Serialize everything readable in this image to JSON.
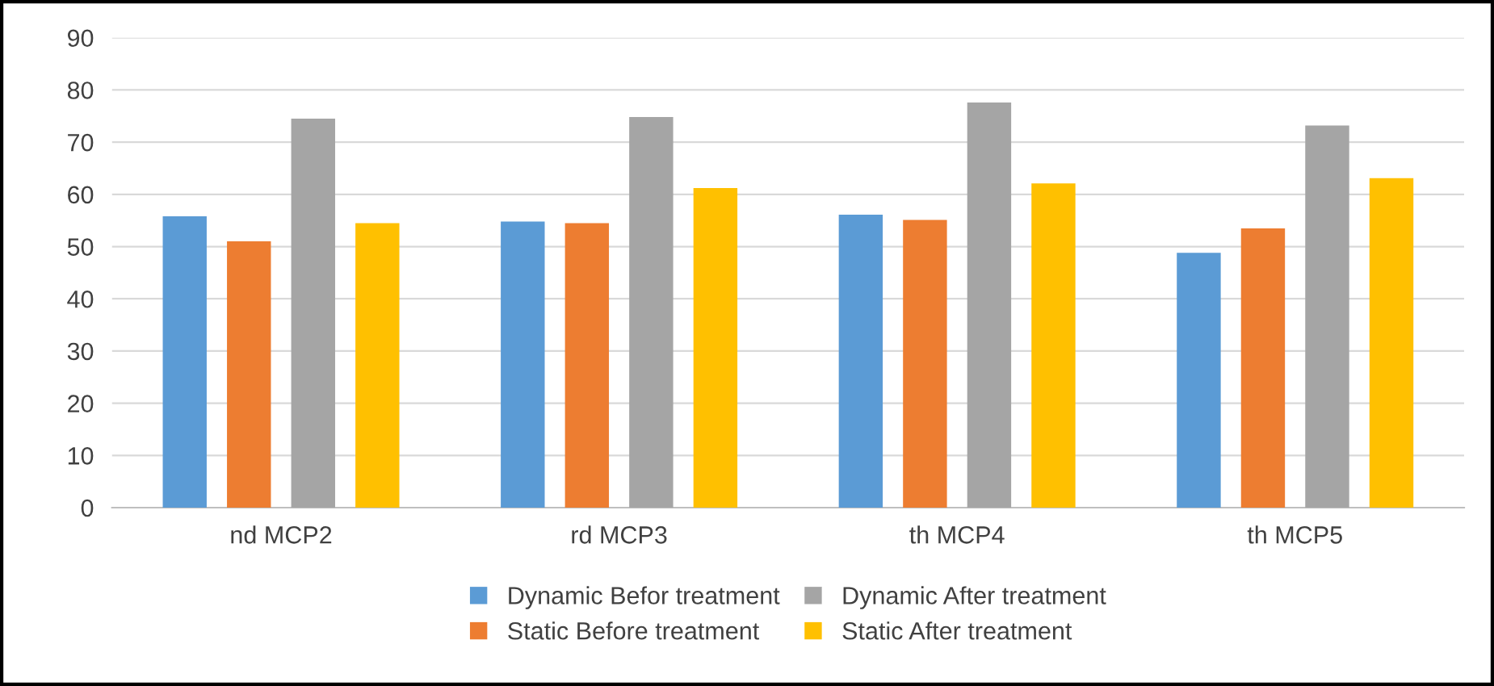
{
  "chart_data": {
    "type": "bar",
    "categories": [
      "nd MCP2",
      "rd MCP3",
      "th MCP4",
      "th MCP5"
    ],
    "series": [
      {
        "name": "Dynamic Befor treatment",
        "color": "#5b9bd5",
        "values": [
          55.8,
          54.8,
          56.1,
          48.8
        ]
      },
      {
        "name": "Static Before treatment",
        "color": "#ed7d31",
        "values": [
          51.0,
          54.5,
          55.1,
          53.5
        ]
      },
      {
        "name": "Dynamic After treatment",
        "color": "#a5a5a5",
        "values": [
          74.5,
          74.8,
          77.6,
          73.2
        ]
      },
      {
        "name": "Static After treatment",
        "color": "#ffc000",
        "values": [
          54.5,
          61.2,
          62.1,
          63.1
        ]
      }
    ],
    "ylim": [
      0,
      90
    ],
    "yticks": [
      0,
      10,
      20,
      30,
      40,
      50,
      60,
      70,
      80,
      90
    ],
    "grid": "y",
    "legend": "bottom"
  }
}
